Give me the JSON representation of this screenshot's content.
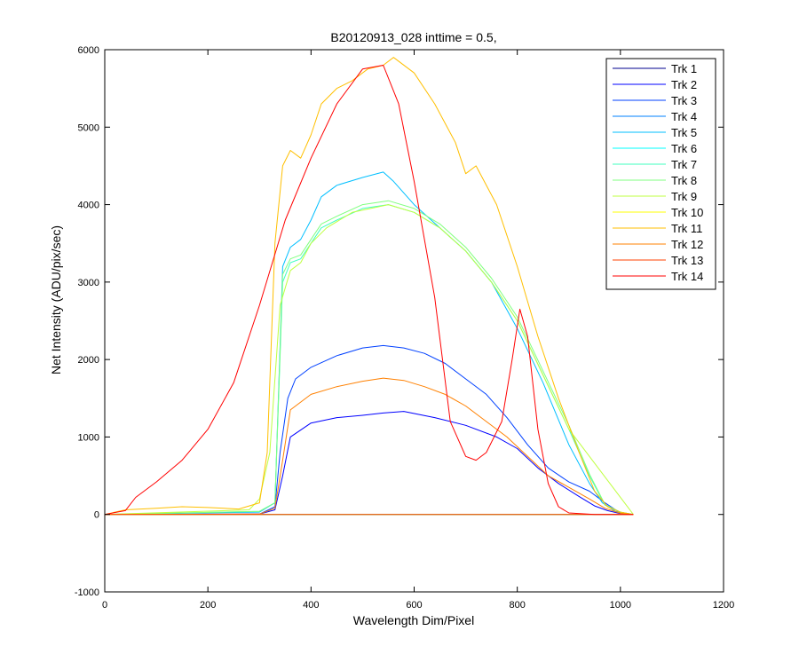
{
  "chart_data": {
    "type": "line",
    "title": "B20120913_028 inttime = 0.5,",
    "xlabel": "Wavelength Dim/Pixel",
    "ylabel": "Net Intensity (ADU/pix/sec)",
    "xlim": [
      0,
      1200
    ],
    "ylim": [
      -1000,
      6000
    ],
    "xticks": [
      0,
      200,
      400,
      600,
      800,
      1000,
      1200
    ],
    "yticks": [
      -1000,
      0,
      1000,
      2000,
      3000,
      4000,
      5000,
      6000
    ],
    "xtick_labels": [
      "0",
      "200",
      "400",
      "600",
      "800",
      "1000",
      "1200"
    ],
    "ytick_labels": [
      "-1000",
      "0",
      "1000",
      "2000",
      "3000",
      "4000",
      "5000",
      "6000"
    ],
    "grid": false,
    "legend_position": "top-right",
    "series": [
      {
        "name": "Trk 1",
        "color": "#00008f",
        "x": [
          0,
          1025
        ],
        "y": [
          0,
          0
        ]
      },
      {
        "name": "Trk 2",
        "color": "#0000ff",
        "x": [
          0,
          300,
          330,
          345,
          360,
          400,
          450,
          500,
          540,
          580,
          640,
          700,
          760,
          800,
          840,
          880,
          920,
          950,
          975,
          1000,
          1025
        ],
        "y": [
          0,
          5,
          60,
          500,
          1000,
          1180,
          1250,
          1280,
          1310,
          1330,
          1250,
          1150,
          1000,
          850,
          600,
          400,
          230,
          110,
          50,
          10,
          0
        ]
      },
      {
        "name": "Trk 3",
        "color": "#0040ff",
        "x": [
          0,
          300,
          330,
          340,
          355,
          370,
          400,
          450,
          500,
          540,
          580,
          620,
          660,
          700,
          740,
          780,
          820,
          860,
          900,
          940,
          970,
          1000,
          1025
        ],
        "y": [
          0,
          5,
          100,
          800,
          1500,
          1750,
          1900,
          2050,
          2150,
          2180,
          2150,
          2080,
          1950,
          1750,
          1550,
          1250,
          900,
          600,
          420,
          300,
          150,
          20,
          0
        ]
      },
      {
        "name": "Trk 4",
        "color": "#0080ff",
        "x": [
          0,
          1025
        ],
        "y": [
          0,
          0
        ]
      },
      {
        "name": "Trk 5",
        "color": "#00bfff",
        "x": [
          0,
          300,
          330,
          345,
          360,
          380,
          400,
          420,
          450,
          500,
          540,
          560,
          600,
          650,
          700,
          750,
          800,
          850,
          900,
          940,
          965,
          990,
          1025
        ],
        "y": [
          0,
          30,
          150,
          3200,
          3450,
          3550,
          3800,
          4100,
          4250,
          4350,
          4420,
          4300,
          4000,
          3700,
          3400,
          3000,
          2400,
          1700,
          900,
          400,
          150,
          40,
          0
        ]
      },
      {
        "name": "Trk 6",
        "color": "#00ffff",
        "x": [
          0,
          1025
        ],
        "y": [
          0,
          0
        ]
      },
      {
        "name": "Trk 7",
        "color": "#40ffbf",
        "x": [
          0,
          300,
          330,
          345,
          360,
          380,
          400,
          420,
          450,
          500,
          550,
          600,
          650,
          700,
          750,
          800,
          850,
          900,
          940,
          970,
          1000,
          1025
        ],
        "y": [
          0,
          40,
          150,
          3000,
          3250,
          3300,
          3500,
          3700,
          3800,
          3950,
          4000,
          3900,
          3700,
          3400,
          3000,
          2500,
          1800,
          1100,
          500,
          120,
          30,
          0
        ]
      },
      {
        "name": "Trk 8",
        "color": "#80ff80",
        "x": [
          0,
          300,
          330,
          345,
          360,
          380,
          400,
          420,
          450,
          500,
          550,
          600,
          650,
          700,
          750,
          800,
          850,
          900,
          940,
          970,
          1000,
          1025
        ],
        "y": [
          0,
          40,
          150,
          3100,
          3300,
          3350,
          3550,
          3750,
          3850,
          4000,
          4050,
          3950,
          3750,
          3450,
          3050,
          2550,
          1850,
          1150,
          520,
          130,
          30,
          0
        ]
      },
      {
        "name": "Trk 9",
        "color": "#bfff40",
        "x": [
          0,
          280,
          300,
          320,
          340,
          360,
          380,
          400,
          430,
          480,
          550,
          600,
          650,
          700,
          750,
          800,
          850,
          900,
          1025
        ],
        "y": [
          0,
          60,
          200,
          800,
          2700,
          3150,
          3250,
          3500,
          3700,
          3900,
          4000,
          3900,
          3700,
          3400,
          3000,
          2500,
          1800,
          1100,
          0
        ]
      },
      {
        "name": "Trk 10",
        "color": "#ffff00",
        "x": [
          0,
          1025
        ],
        "y": [
          0,
          0
        ]
      },
      {
        "name": "Trk 11",
        "color": "#ffbf00",
        "x": [
          0,
          40,
          100,
          150,
          200,
          260,
          300,
          315,
          330,
          345,
          360,
          380,
          400,
          420,
          450,
          480,
          510,
          540,
          560,
          600,
          640,
          680,
          700,
          720,
          760,
          800,
          840,
          880,
          920,
          950,
          975,
          1000,
          1025
        ],
        "y": [
          0,
          60,
          80,
          100,
          90,
          70,
          150,
          800,
          3500,
          4500,
          4700,
          4600,
          4900,
          5300,
          5500,
          5600,
          5750,
          5800,
          5900,
          5700,
          5300,
          4800,
          4400,
          4500,
          4000,
          3200,
          2300,
          1500,
          800,
          300,
          100,
          30,
          0
        ]
      },
      {
        "name": "Trk 12",
        "color": "#ff8000",
        "x": [
          0,
          300,
          330,
          345,
          360,
          380,
          400,
          450,
          500,
          540,
          580,
          620,
          660,
          700,
          740,
          780,
          820,
          860,
          900,
          940,
          970,
          1000,
          1025
        ],
        "y": [
          0,
          5,
          80,
          700,
          1350,
          1450,
          1550,
          1650,
          1720,
          1760,
          1730,
          1650,
          1550,
          1400,
          1200,
          1000,
          750,
          500,
          350,
          200,
          80,
          15,
          0
        ]
      },
      {
        "name": "Trk 13",
        "color": "#ff4000",
        "x": [
          0,
          1025
        ],
        "y": [
          0,
          0
        ]
      },
      {
        "name": "Trk 14",
        "color": "#ff0000",
        "x": [
          0,
          40,
          60,
          100,
          150,
          200,
          250,
          300,
          350,
          400,
          450,
          500,
          540,
          570,
          600,
          640,
          670,
          700,
          720,
          740,
          770,
          790,
          805,
          820,
          840,
          860,
          880,
          900,
          950,
          1000,
          1025
        ],
        "y": [
          0,
          50,
          220,
          420,
          700,
          1100,
          1700,
          2700,
          3800,
          4600,
          5300,
          5750,
          5800,
          5300,
          4300,
          2800,
          1200,
          750,
          700,
          800,
          1200,
          2000,
          2650,
          2300,
          1100,
          400,
          100,
          20,
          0,
          0,
          0
        ]
      }
    ]
  }
}
